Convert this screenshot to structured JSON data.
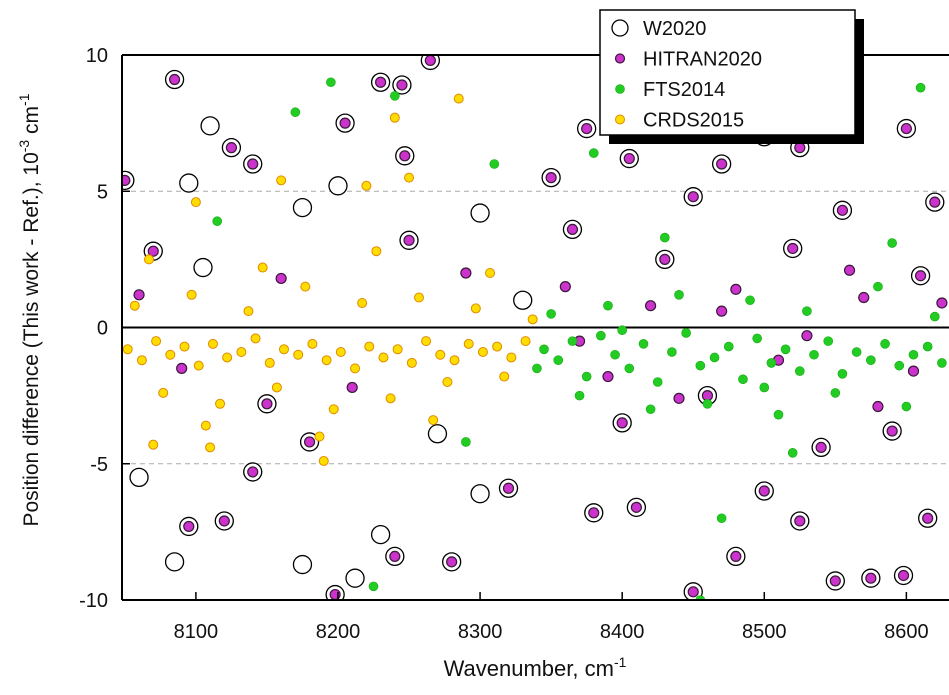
{
  "chart_data": {
    "type": "scatter",
    "x_label": [
      "Wavenumber, cm",
      "-1"
    ],
    "y_label": [
      "Position difference (This work - Ref.), 10",
      "-3",
      " cm",
      "-1"
    ],
    "xlim": [
      8048,
      8630
    ],
    "ylim": [
      -10,
      10
    ],
    "xticks": [
      8100,
      8200,
      8300,
      8400,
      8500,
      8600
    ],
    "yticks": [
      -10,
      -5,
      0,
      5,
      10
    ],
    "grid": true,
    "zero_line": true,
    "legend": "upper right",
    "series": [
      {
        "name": "W2020",
        "color": "#000000",
        "marker": "open",
        "x": [
          8050,
          8085,
          8110,
          8125,
          8140,
          8095,
          8175,
          8200,
          8205,
          8230,
          8245,
          8265,
          8247,
          8300,
          8350,
          8375,
          8405,
          8450,
          8470,
          8500,
          8525,
          8555,
          8600,
          8620,
          8060,
          8085,
          8095,
          8120,
          8140,
          8175,
          8198,
          8212,
          8230,
          8240,
          8280,
          8300,
          8320,
          8380,
          8410,
          8450,
          8480,
          8500,
          8525,
          8550,
          8575,
          8598,
          8615,
          8070,
          8150,
          8250,
          8400,
          8520,
          8590,
          8180,
          8330,
          8460,
          8105,
          8270,
          8365,
          8430,
          8540,
          8610
        ],
        "values": [
          5.4,
          9.1,
          7.4,
          6.6,
          6.0,
          5.3,
          4.4,
          5.2,
          7.5,
          9.0,
          8.9,
          9.8,
          6.3,
          4.2,
          5.5,
          7.3,
          6.2,
          4.8,
          6.0,
          7.0,
          6.6,
          4.3,
          7.3,
          4.6,
          -5.5,
          -8.6,
          -7.3,
          -7.1,
          -5.3,
          -8.7,
          -9.8,
          -9.2,
          -7.6,
          -8.4,
          -8.6,
          -6.1,
          -5.9,
          -6.8,
          -6.6,
          -9.7,
          -8.4,
          -6.0,
          -7.1,
          -9.3,
          -9.2,
          -9.1,
          -7.0,
          2.8,
          -2.8,
          3.2,
          -3.5,
          2.9,
          -3.8,
          -4.2,
          1.0,
          -2.5,
          2.2,
          -3.9,
          3.6,
          2.5,
          -4.4,
          1.9
        ]
      },
      {
        "name": "HITRAN2020",
        "color": "#cc33cc",
        "marker": "filled",
        "x": [
          8050,
          8085,
          8125,
          8140,
          8205,
          8230,
          8245,
          8265,
          8247,
          8350,
          8375,
          8405,
          8450,
          8470,
          8525,
          8555,
          8600,
          8620,
          8095,
          8120,
          8140,
          8198,
          8240,
          8280,
          8320,
          8380,
          8410,
          8450,
          8480,
          8500,
          8525,
          8550,
          8575,
          8598,
          8615,
          8070,
          8150,
          8250,
          8400,
          8520,
          8590,
          8180,
          8460,
          8365,
          8430,
          8540,
          8610,
          8060,
          8090,
          8160,
          8210,
          8290,
          8360,
          8390,
          8420,
          8440,
          8480,
          8510,
          8560,
          8580,
          8625,
          8370,
          8470,
          8530,
          8570,
          8605
        ],
        "values": [
          5.4,
          9.1,
          6.6,
          6.0,
          7.5,
          9.0,
          8.9,
          9.8,
          6.3,
          5.5,
          7.3,
          6.2,
          4.8,
          6.0,
          6.6,
          4.3,
          7.3,
          4.6,
          -7.3,
          -7.1,
          -5.3,
          -9.8,
          -8.4,
          -8.6,
          -5.9,
          -6.8,
          -6.6,
          -9.7,
          -8.4,
          -6.0,
          -7.1,
          -9.3,
          -9.2,
          -9.1,
          -7.0,
          2.8,
          -2.8,
          3.2,
          -3.5,
          2.9,
          -3.8,
          -4.2,
          -2.5,
          3.6,
          2.5,
          -4.4,
          1.9,
          1.2,
          -1.5,
          1.8,
          -2.2,
          2.0,
          1.5,
          -1.8,
          0.8,
          -2.6,
          1.4,
          -1.2,
          2.1,
          -2.9,
          0.9,
          -0.5,
          0.6,
          -0.3,
          1.1,
          -1.6
        ]
      },
      {
        "name": "FTS2014",
        "color": "#22cc22",
        "marker": "filled",
        "x": [
          8195,
          8170,
          8240,
          8290,
          8310,
          8345,
          8355,
          8365,
          8375,
          8385,
          8395,
          8405,
          8415,
          8425,
          8435,
          8445,
          8455,
          8465,
          8475,
          8485,
          8495,
          8505,
          8515,
          8525,
          8535,
          8545,
          8555,
          8565,
          8575,
          8585,
          8595,
          8605,
          8615,
          8625,
          8350,
          8370,
          8390,
          8420,
          8440,
          8460,
          8490,
          8510,
          8530,
          8550,
          8580,
          8600,
          8620,
          8380,
          8470,
          8560,
          8610,
          8430,
          8520,
          8590,
          8115,
          8225,
          8340,
          8400,
          8500,
          8455
        ],
        "values": [
          9.0,
          7.9,
          8.5,
          -4.2,
          6.0,
          -0.8,
          -1.2,
          -0.5,
          -1.8,
          -0.3,
          -1.0,
          -1.5,
          -0.6,
          -2.0,
          -0.9,
          -0.2,
          -1.4,
          -1.1,
          -0.7,
          -1.9,
          -0.4,
          -1.3,
          -0.8,
          -1.6,
          -1.0,
          -0.5,
          -1.7,
          -0.9,
          -1.2,
          -0.6,
          -1.4,
          -1.0,
          -0.7,
          -1.3,
          0.5,
          -2.5,
          0.8,
          -3.0,
          1.2,
          -2.8,
          1.0,
          -3.2,
          0.6,
          -2.4,
          1.5,
          -2.9,
          0.4,
          6.4,
          -7.0,
          7.1,
          8.8,
          3.3,
          -4.6,
          3.1,
          3.9,
          -9.5,
          -1.5,
          -0.1,
          -2.2,
          -10.0
        ]
      },
      {
        "name": "CRDS2015",
        "color": "#ffdd00",
        "marker": "filled",
        "x": [
          8052,
          8062,
          8072,
          8082,
          8092,
          8102,
          8112,
          8122,
          8132,
          8142,
          8152,
          8162,
          8172,
          8182,
          8192,
          8202,
          8212,
          8222,
          8232,
          8242,
          8252,
          8262,
          8272,
          8282,
          8292,
          8302,
          8312,
          8322,
          8332,
          8057,
          8077,
          8097,
          8117,
          8137,
          8157,
          8177,
          8197,
          8217,
          8237,
          8257,
          8277,
          8297,
          8317,
          8337,
          8067,
          8107,
          8147,
          8187,
          8227,
          8267,
          8307,
          8100,
          8160,
          8220,
          8240,
          8285,
          8110,
          8190,
          8250,
          8070
        ],
        "values": [
          -0.8,
          -1.2,
          -0.5,
          -1.0,
          -0.7,
          -1.4,
          -0.6,
          -1.1,
          -0.9,
          -0.4,
          -1.3,
          -0.8,
          -1.0,
          -0.6,
          -1.2,
          -0.9,
          -1.5,
          -0.7,
          -1.1,
          -0.8,
          -1.3,
          -0.5,
          -1.0,
          -1.2,
          -0.6,
          -0.9,
          -0.7,
          -1.1,
          -0.5,
          0.8,
          -2.4,
          1.2,
          -2.8,
          0.6,
          -2.2,
          1.5,
          -3.0,
          0.9,
          -2.6,
          1.1,
          -2.0,
          0.7,
          -1.8,
          0.3,
          2.5,
          -3.6,
          2.2,
          -4.0,
          2.8,
          -3.4,
          2.0,
          4.6,
          5.4,
          5.2,
          7.7,
          8.4,
          -4.4,
          -4.9,
          5.5,
          -4.3
        ]
      }
    ]
  }
}
